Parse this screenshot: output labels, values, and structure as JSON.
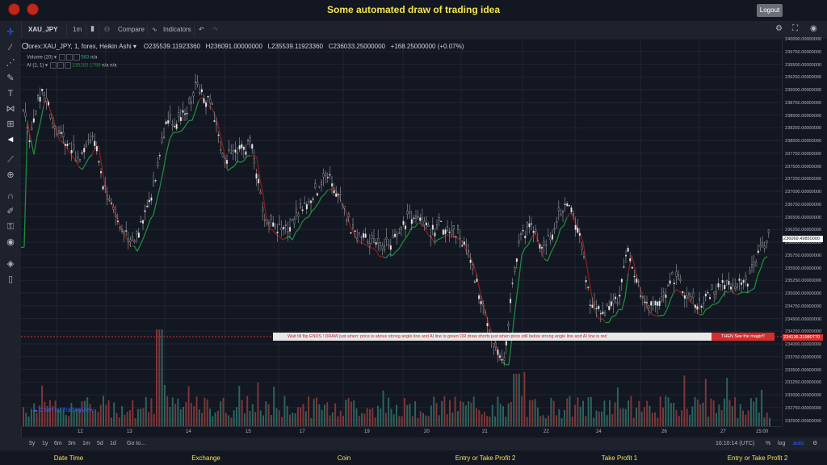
{
  "header": {
    "title": "Some automated draw of trading idea",
    "logout_label": "Logout"
  },
  "toolbar": {
    "symbol": "XAU_JPY",
    "interval": "1m",
    "compare_label": "Compare",
    "indicators_label": "Indicators"
  },
  "legend": {
    "symbol_line": "forex:XAU_JPY, 1, forex, Heikin Ashi",
    "open": "O235539.11923360",
    "high": "H236091.00000000",
    "low": "L235539.11923360",
    "close": "C236033.25000000",
    "change": "+168.25000000 (+0.07%)",
    "volume_label": "Volume (20)",
    "volume_value": "563",
    "volume_na": "n/a",
    "ai_label": "AI (1, 1)",
    "ai_value": "235283.1789",
    "ai_na1": "n/a",
    "ai_na2": "n/a"
  },
  "price_axis": {
    "labels": [
      "240000.00000000",
      "239750.00000000",
      "239500.00000000",
      "239250.00000000",
      "239000.00000000",
      "238750.00000000",
      "238500.00000000",
      "238250.00000000",
      "238000.00000000",
      "237750.00000000",
      "237500.00000000",
      "237250.00000000",
      "237000.00000000",
      "236750.00000000",
      "236500.00000000",
      "236250.00000000",
      "236000.00000000",
      "235750.00000000",
      "235500.00000000",
      "235250.00000000",
      "235000.00000000",
      "234750.00000000",
      "234500.00000000",
      "234250.00000000",
      "234000.00000000",
      "233750.00000000",
      "233500.00000000",
      "233250.00000000",
      "233000.00000000",
      "232750.00000000",
      "232500.00000000"
    ],
    "current_price": "236069.49850000",
    "line_price": "234136.31980770",
    "current_color": "#ffffff",
    "line_color": "#d32f2f"
  },
  "time_axis": {
    "labels": [
      "12",
      "13",
      "14",
      "15",
      "17",
      "19",
      "20",
      "21",
      "22",
      "24",
      "26",
      "27",
      "15:00"
    ]
  },
  "banner": {
    "text": "Wait till flip ENDS !   DRAW just when:  price is above strong angle line and AI line is green         OR         draw shorts just when price still below strong angle line and AI line is red",
    "right_text": "THEN See the magic!!"
  },
  "watermark": "Chart by TradingView",
  "bottom_bar": {
    "ranges": [
      "5y",
      "1y",
      "6m",
      "3m",
      "1m",
      "5d",
      "1d"
    ],
    "goto_label": "Go to...",
    "time": "16:10:14 (UTC)",
    "percent_label": "%",
    "log_label": "log",
    "auto_label": "auto"
  },
  "footer": {
    "items": [
      "Date Time",
      "Exchange",
      "Coin",
      "Entry or Take Profit 2",
      "Take Profit 1",
      "Entry or Take Profit 2"
    ]
  },
  "colors": {
    "up": "#e6e6e6",
    "down": "#1a1a1a",
    "ai_green": "#1e8a3c",
    "ai_red": "#b71c1c",
    "vol_up": "#26a69a",
    "vol_down": "#ef5350",
    "accent": "#f5e64a"
  },
  "icons": [
    "crosshair-icon",
    "trend-line-icon",
    "fib-icon",
    "brush-icon",
    "text-icon",
    "pattern-icon",
    "measure-icon",
    "back-arrow-icon",
    "ruler-icon",
    "zoom-icon",
    "magnet-icon",
    "lock-icon",
    "eye-icon",
    "layers-icon",
    "trash-icon"
  ]
}
